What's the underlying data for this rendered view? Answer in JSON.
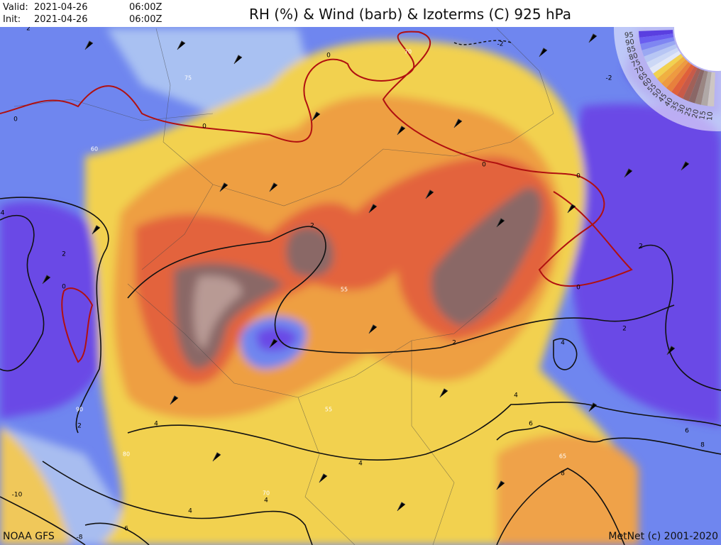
{
  "header": {
    "valid_label": "Valid:",
    "valid_date": "2021-04-26",
    "valid_time": "06:00Z",
    "init_label": "Init:",
    "init_date": "2021-04-26",
    "init_time": "06:00Z",
    "title": "RH (%) & Wind (barb) & Izoterms (C) 925 hPa"
  },
  "legend": {
    "labels": [
      "95",
      "90",
      "85",
      "80",
      "75",
      "70",
      "65",
      "60",
      "55",
      "50",
      "45",
      "40",
      "35",
      "30",
      "25",
      "20",
      "15",
      "10"
    ]
  },
  "contour_labels": [
    "-2",
    "-2",
    "0",
    "0",
    "0",
    "0",
    "0",
    "0",
    "0",
    "2",
    "2",
    "2",
    "2",
    "2",
    "2",
    "4",
    "4",
    "4",
    "4",
    "4",
    "6",
    "6",
    "8",
    "8",
    "6",
    "-10",
    "-8",
    "4",
    "75",
    "60",
    "55",
    "55",
    "90",
    "80",
    "70",
    "65",
    "70",
    "-4",
    "2"
  ],
  "footer": {
    "source": "NOAA GFS",
    "copyright": "MetNet (c) 2001-2020"
  }
}
